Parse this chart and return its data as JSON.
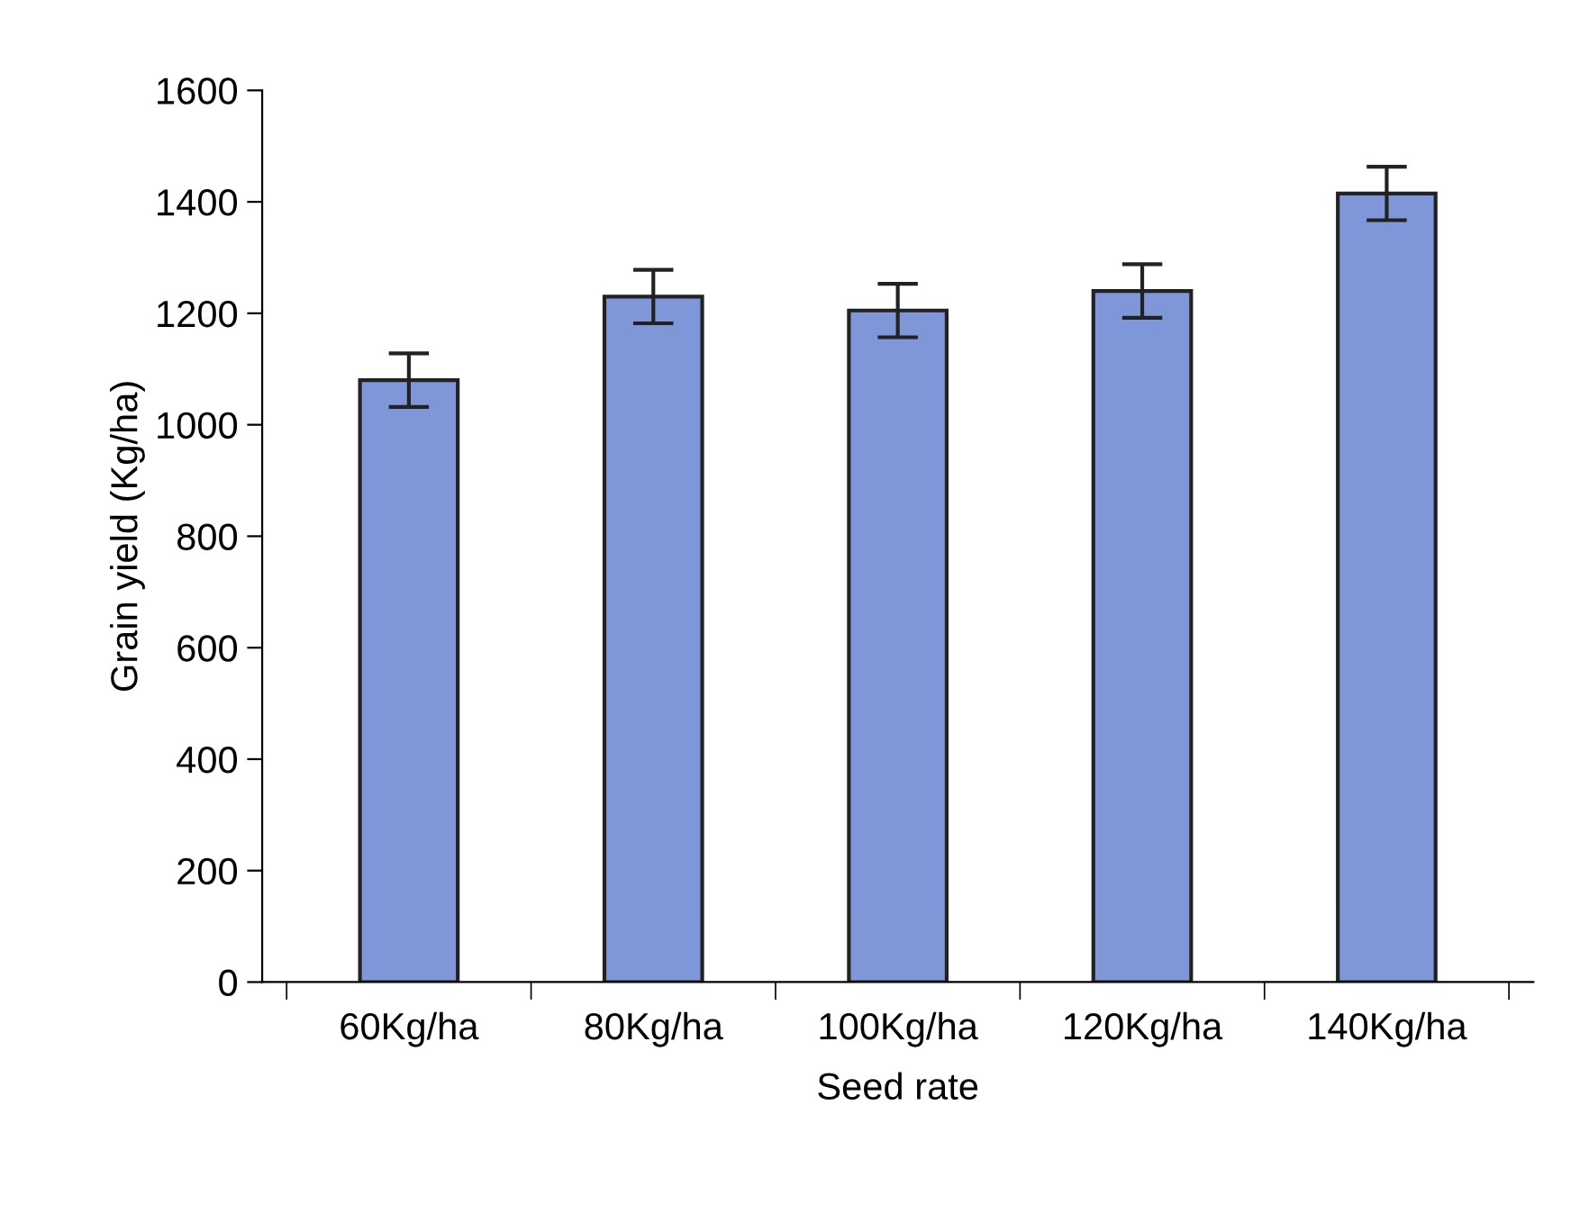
{
  "chart_data": {
    "type": "bar",
    "xlabel": "Seed rate",
    "ylabel": "Grain yield (Kg/ha)",
    "categories": [
      "60Kg/ha",
      "80Kg/ha",
      "100Kg/ha",
      "120Kg/ha",
      "140Kg/ha"
    ],
    "values": [
      1080,
      1230,
      1205,
      1240,
      1415
    ],
    "errors": [
      48,
      48,
      48,
      48,
      48
    ],
    "color": "#7f96d8",
    "ylim": [
      0,
      1600
    ],
    "yticks": [
      0,
      200,
      400,
      600,
      800,
      1000,
      1200,
      1400,
      1600
    ],
    "grid": false
  }
}
